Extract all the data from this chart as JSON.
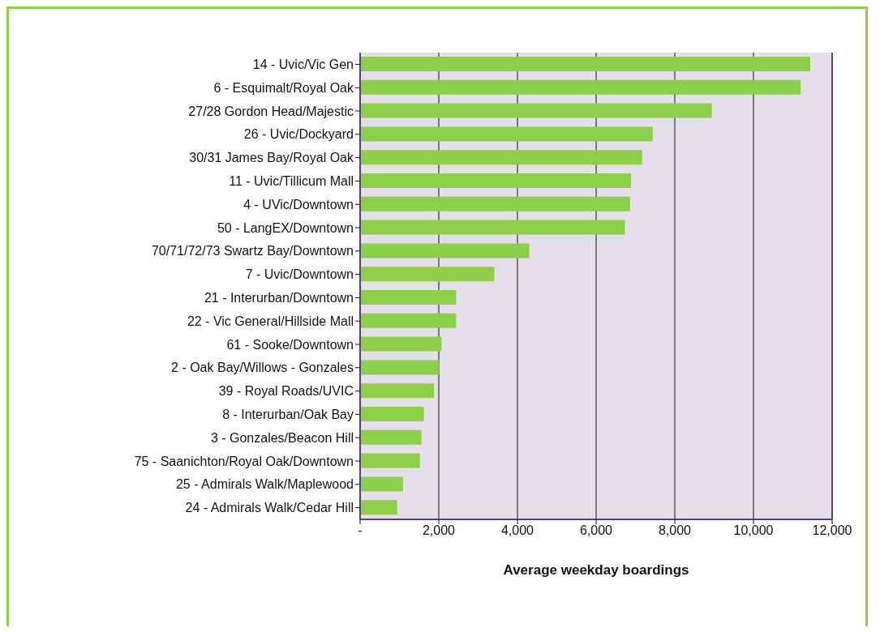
{
  "chart_data": {
    "type": "bar",
    "orientation": "horizontal",
    "xlabel": "Average weekday boardings",
    "categories": [
      "14 - Uvic/Vic Gen",
      "6 - Esquimalt/Royal Oak",
      "27/28 Gordon Head/Majestic",
      "26 - Uvic/Dockyard",
      "30/31 James Bay/Royal Oak",
      "11 - Uvic/Tillicum Mall",
      "4 - UVic/Downtown",
      "50 - LangEX/Downtown",
      "70/71/72/73 Swartz Bay/Downtown",
      "7 - Uvic/Downtown",
      "21 - Interurban/Downtown",
      "22 - Vic General/Hillside Mall",
      "61 - Sooke/Downtown",
      "2 - Oak Bay/Willows - Gonzales",
      "39 - Royal Roads/UVIC",
      "8 - Interurban/Oak Bay",
      "3 - Gonzales/Beacon Hill",
      "75 - Saanichton/Royal Oak/Downtown",
      "25 - Admirals Walk/Maplewood",
      "24 - Admirals Walk/Cedar Hill"
    ],
    "values": [
      11440,
      11200,
      8940,
      7440,
      7170,
      6890,
      6860,
      6730,
      4300,
      3410,
      2440,
      2440,
      2070,
      2010,
      1880,
      1620,
      1560,
      1520,
      1090,
      940
    ],
    "color": "#8ccf48",
    "xlim": [
      0,
      12000
    ],
    "xticks": [
      {
        "value": 0,
        "label": "-"
      },
      {
        "value": 2000,
        "label": "2,000"
      },
      {
        "value": 4000,
        "label": "4,000"
      },
      {
        "value": 6000,
        "label": "6,000"
      },
      {
        "value": 8000,
        "label": "8,000"
      },
      {
        "value": 10000,
        "label": "10,000"
      },
      {
        "value": 12000,
        "label": "12,000"
      }
    ],
    "grid": "x",
    "legend": false
  }
}
